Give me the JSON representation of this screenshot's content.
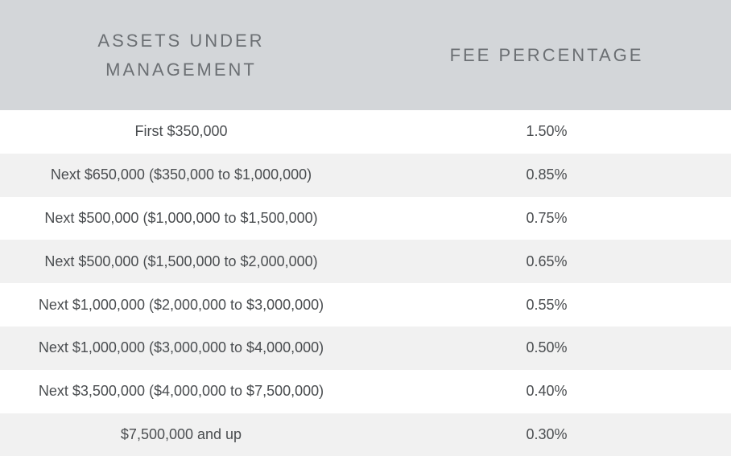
{
  "table": {
    "headers": {
      "assets": "ASSETS UNDER MANAGEMENT",
      "fee": "FEE PERCENTAGE"
    },
    "rows": [
      {
        "assets": "First $350,000",
        "fee": "1.50%"
      },
      {
        "assets": "Next $650,000 ($350,000 to $1,000,000)",
        "fee": "0.85%"
      },
      {
        "assets": "Next $500,000 ($1,000,000 to $1,500,000)",
        "fee": "0.75%"
      },
      {
        "assets": "Next $500,000 ($1,500,000 to $2,000,000)",
        "fee": "0.65%"
      },
      {
        "assets": "Next $1,000,000 ($2,000,000 to $3,000,000)",
        "fee": "0.55%"
      },
      {
        "assets": "Next $1,000,000 ($3,000,000 to $4,000,000)",
        "fee": "0.50%"
      },
      {
        "assets": "Next $3,500,000 ($4,000,000 to $7,500,000)",
        "fee": "0.40%"
      },
      {
        "assets": "$7,500,000 and up",
        "fee": "0.30%"
      }
    ]
  },
  "colors": {
    "header_bg": "#d3d6d9",
    "header_text": "#6b6f73",
    "row_alt_bg": "#f1f1f1",
    "row_bg": "#ffffff",
    "cell_text": "#4a4d50"
  }
}
